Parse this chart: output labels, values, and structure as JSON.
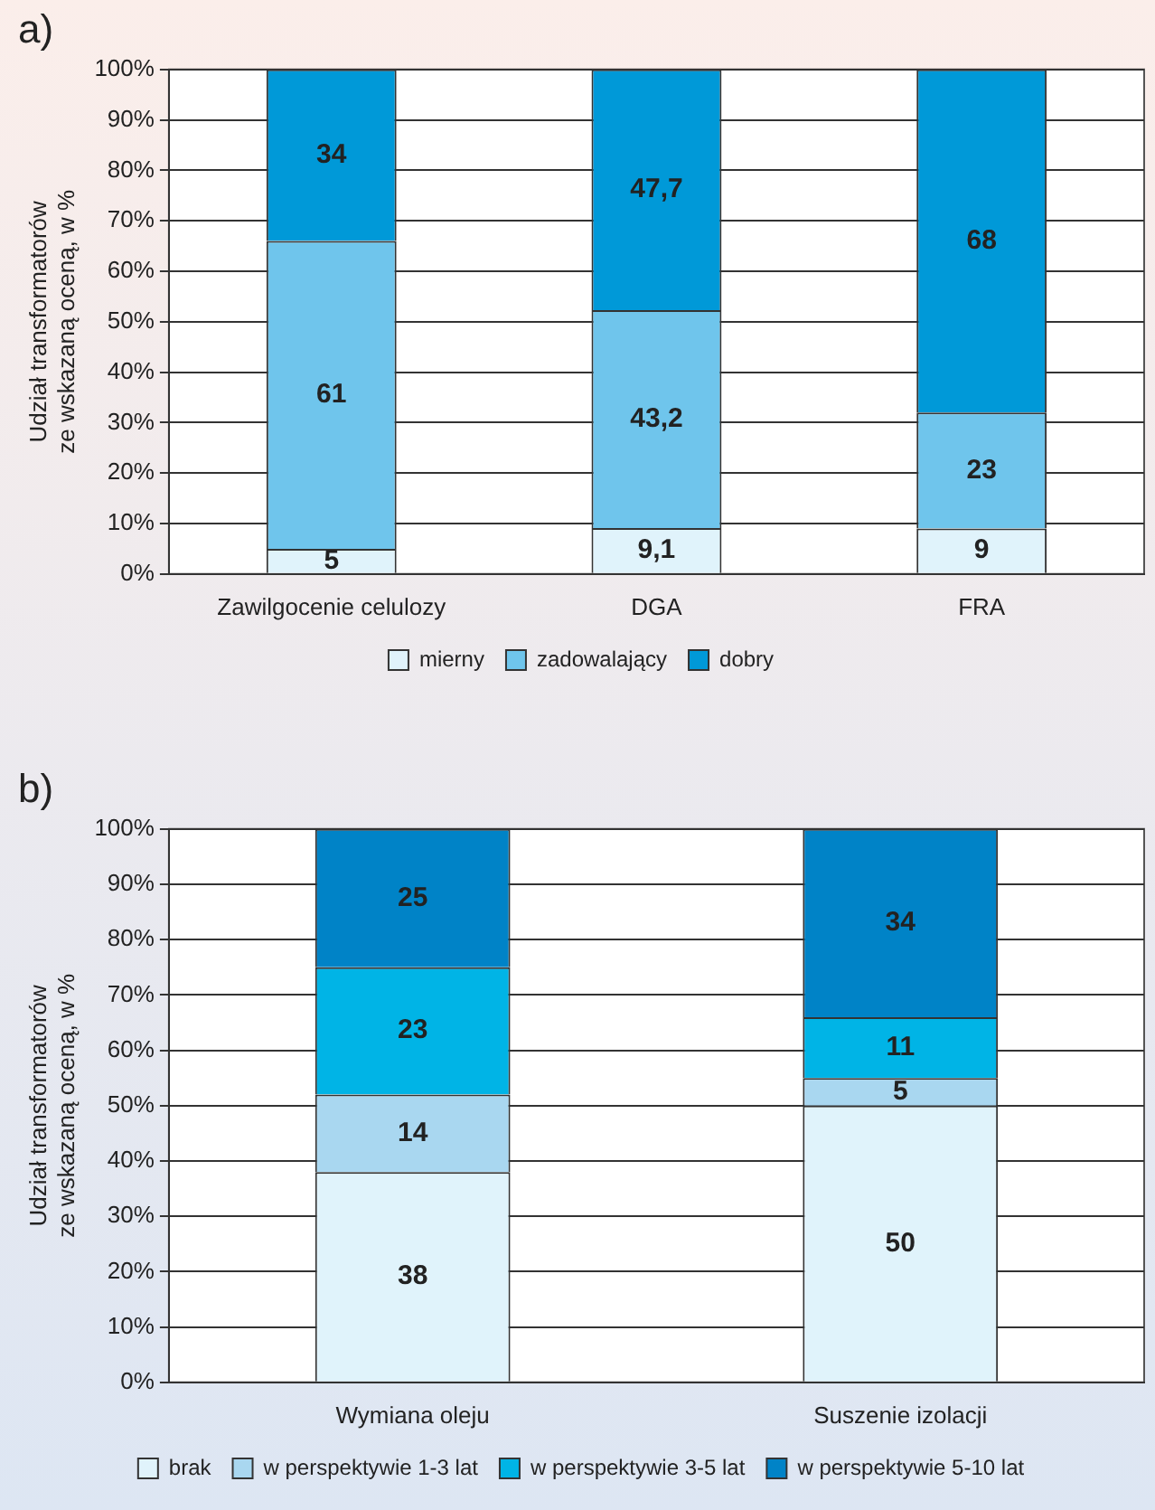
{
  "chart_data": [
    {
      "type": "bar",
      "title": "a)",
      "ylabel": "Udział transformatorów\nze wskazaną oceną, w %",
      "categories": [
        "Zawilgocenie celulozy",
        "DGA",
        "FRA"
      ],
      "stacked": true,
      "ylim": [
        0,
        100
      ],
      "yticks": [
        {
          "value": 0,
          "label": "0%"
        },
        {
          "value": 10,
          "label": "10%"
        },
        {
          "value": 20,
          "label": "20%"
        },
        {
          "value": 30,
          "label": "30%"
        },
        {
          "value": 40,
          "label": "40%"
        },
        {
          "value": 50,
          "label": "50%"
        },
        {
          "value": 60,
          "label": "60%"
        },
        {
          "value": 70,
          "label": "70%"
        },
        {
          "value": 80,
          "label": "80%"
        },
        {
          "value": 90,
          "label": "90%"
        },
        {
          "value": 100,
          "label": "100%"
        }
      ],
      "grid": "y",
      "legend": "bottom",
      "series": [
        {
          "name": "mierny",
          "color": "#e0f3fb",
          "values": [
            5,
            9.1,
            9
          ],
          "value_labels": [
            "5",
            "9,1",
            "9"
          ]
        },
        {
          "name": "zadowalający",
          "color": "#6fc5ec",
          "values": [
            61,
            43.2,
            23
          ],
          "value_labels": [
            "61",
            "43,2",
            "23"
          ]
        },
        {
          "name": "dobry",
          "color": "#0099d8",
          "values": [
            34,
            47.7,
            68
          ],
          "value_labels": [
            "34",
            "47,7",
            "68"
          ]
        }
      ]
    },
    {
      "type": "bar",
      "title": "b)",
      "ylabel": "Udział transformatorów\nze wskazaną oceną, w %",
      "categories": [
        "Wymiana oleju",
        "Suszenie izolacji"
      ],
      "stacked": true,
      "ylim": [
        0,
        100
      ],
      "yticks": [
        {
          "value": 0,
          "label": "0%"
        },
        {
          "value": 10,
          "label": "10%"
        },
        {
          "value": 20,
          "label": "20%"
        },
        {
          "value": 30,
          "label": "30%"
        },
        {
          "value": 40,
          "label": "40%"
        },
        {
          "value": 50,
          "label": "50%"
        },
        {
          "value": 60,
          "label": "60%"
        },
        {
          "value": 70,
          "label": "70%"
        },
        {
          "value": 80,
          "label": "80%"
        },
        {
          "value": 90,
          "label": "90%"
        },
        {
          "value": 100,
          "label": "100%"
        }
      ],
      "grid": "y",
      "legend": "bottom",
      "series": [
        {
          "name": "brak",
          "color": "#e0f3fb",
          "values": [
            38,
            50
          ],
          "value_labels": [
            "38",
            "50"
          ]
        },
        {
          "name": "w perspektywie 1-3 lat",
          "color": "#a9d7f0",
          "values": [
            14,
            5
          ],
          "value_labels": [
            "14",
            "5"
          ]
        },
        {
          "name": "w perspektywie 3-5 lat",
          "color": "#00b4e6",
          "values": [
            23,
            11
          ],
          "value_labels": [
            "23",
            "11"
          ]
        },
        {
          "name": "w perspektywie 5-10 lat",
          "color": "#0083c7",
          "values": [
            25,
            34
          ],
          "value_labels": [
            "25",
            "34"
          ]
        }
      ]
    }
  ]
}
